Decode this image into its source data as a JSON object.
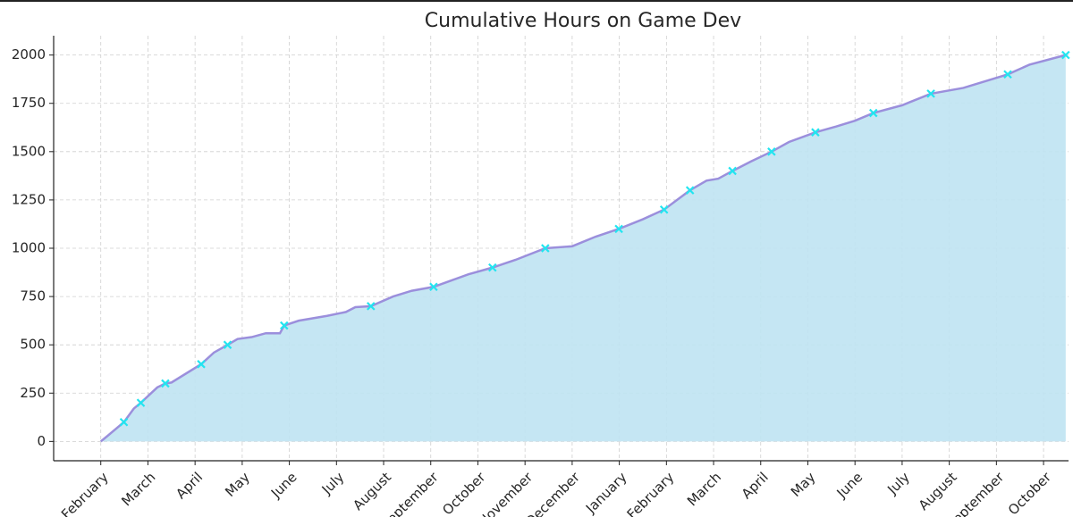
{
  "chart_data": {
    "type": "area",
    "title": "Cumulative Hours on Game Dev",
    "xlim": [
      -1.0,
      20.53
    ],
    "ylim": [
      -100,
      2100
    ],
    "xticks": [
      {
        "value": 0,
        "label": "February"
      },
      {
        "value": 1,
        "label": "March"
      },
      {
        "value": 2,
        "label": "April"
      },
      {
        "value": 3,
        "label": "May"
      },
      {
        "value": 4,
        "label": "June"
      },
      {
        "value": 5,
        "label": "July"
      },
      {
        "value": 6,
        "label": "August"
      },
      {
        "value": 7,
        "label": "September"
      },
      {
        "value": 8,
        "label": "October"
      },
      {
        "value": 9,
        "label": "November"
      },
      {
        "value": 10,
        "label": "December"
      },
      {
        "value": 11,
        "label": "January"
      },
      {
        "value": 12,
        "label": "February"
      },
      {
        "value": 13,
        "label": "March"
      },
      {
        "value": 14,
        "label": "April"
      },
      {
        "value": 15,
        "label": "May"
      },
      {
        "value": 16,
        "label": "June"
      },
      {
        "value": 17,
        "label": "July"
      },
      {
        "value": 18,
        "label": "August"
      },
      {
        "value": 19,
        "label": "September"
      },
      {
        "value": 20,
        "label": "October"
      }
    ],
    "yticks": [
      0,
      250,
      500,
      750,
      1000,
      1250,
      1500,
      1750,
      2000
    ],
    "grid": true,
    "series": [
      {
        "color": "#9b8fdc",
        "fill": "#bfe3f2",
        "x": [
          0,
          0.15,
          0.49,
          0.7,
          0.85,
          1.2,
          1.37,
          1.5,
          2.13,
          2.4,
          2.69,
          2.9,
          3.2,
          3.5,
          3.8,
          3.89,
          4.2,
          4.8,
          5.2,
          5.4,
          5.73,
          6.2,
          6.6,
          7.06,
          7.4,
          7.8,
          8.31,
          8.8,
          9.43,
          10.0,
          10.5,
          10.99,
          11.5,
          11.95,
          12.5,
          12.85,
          13.1,
          13.4,
          13.8,
          14.23,
          14.6,
          15.16,
          15.6,
          16.0,
          16.39,
          17.0,
          17.61,
          18.3,
          19.24,
          19.7,
          20.47
        ],
        "values": [
          0,
          30,
          100,
          170,
          200,
          280,
          300,
          305,
          400,
          460,
          500,
          530,
          540,
          560,
          560,
          600,
          625,
          650,
          670,
          695,
          700,
          750,
          780,
          800,
          830,
          865,
          900,
          940,
          1000,
          1010,
          1060,
          1100,
          1150,
          1200,
          1300,
          1350,
          1360,
          1400,
          1450,
          1500,
          1550,
          1600,
          1630,
          1660,
          1700,
          1740,
          1800,
          1830,
          1900,
          1950,
          2000
        ]
      },
      {
        "color": "#22e5f0",
        "marker": "x",
        "x": [
          0.49,
          0.85,
          1.37,
          2.13,
          2.69,
          3.89,
          5.73,
          7.06,
          8.31,
          9.43,
          10.99,
          11.95,
          12.5,
          13.4,
          14.23,
          15.16,
          16.39,
          17.61,
          19.24,
          20.47
        ],
        "values": [
          100,
          200,
          300,
          400,
          500,
          600,
          700,
          800,
          900,
          1000,
          1100,
          1200,
          1300,
          1400,
          1500,
          1600,
          1700,
          1800,
          1900,
          2000
        ]
      }
    ]
  }
}
